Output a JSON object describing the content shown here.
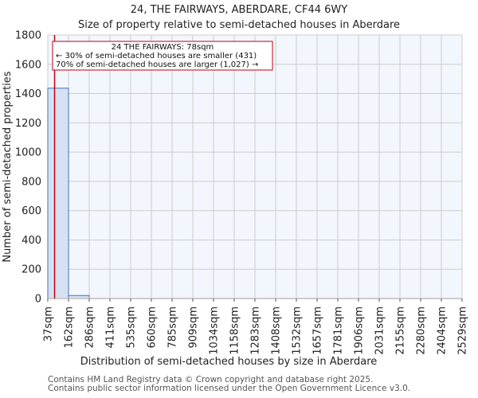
{
  "title": "24, THE FAIRWAYS, ABERDARE, CF44 6WY",
  "subtitle": "Size of property relative to semi-detached houses in Aberdare",
  "footer": {
    "line1": "Contains HM Land Registry data © Crown copyright and database right 2025.",
    "line2": "Contains public sector information licensed under the Open Government Licence v3.0."
  },
  "annotation": {
    "line1": "24 THE FAIRWAYS: 78sqm",
    "line2": "← 30% of semi-detached houses are smaller (431)",
    "line3": "70% of semi-detached houses are larger (1,027) →"
  },
  "colors": {
    "bar_fill": "#d6e1f3",
    "bar_edge": "#5a8ac8",
    "marker": "#c00010",
    "plot_bg": "#f2f6fd",
    "grid": "#cccccc"
  },
  "chart_data": {
    "type": "bar",
    "title": "24, THE FAIRWAYS, ABERDARE, CF44 6WY",
    "subtitle": "Size of property relative to semi-detached houses in Aberdare",
    "xlabel": "Distribution of semi-detached houses by size in Aberdare",
    "ylabel": "Number of semi-detached properties",
    "ylim": [
      0,
      1800
    ],
    "yticks": [
      0,
      200,
      400,
      600,
      800,
      1000,
      1200,
      1400,
      1600,
      1800
    ],
    "bin_edges_labels": [
      "37sqm",
      "162sqm",
      "286sqm",
      "411sqm",
      "535sqm",
      "660sqm",
      "785sqm",
      "909sqm",
      "1034sqm",
      "1158sqm",
      "1283sqm",
      "1408sqm",
      "1532sqm",
      "1657sqm",
      "1781sqm",
      "1906sqm",
      "2031sqm",
      "2155sqm",
      "2280sqm",
      "2404sqm",
      "2529sqm"
    ],
    "categories": [
      "37-162",
      "162-286",
      "286-411",
      "411-535",
      "535-660",
      "660-785",
      "785-909",
      "909-1034",
      "1034-1158",
      "1158-1283",
      "1283-1408",
      "1408-1532",
      "1532-1657",
      "1657-1781",
      "1781-1906",
      "1906-2031",
      "2031-2155",
      "2155-2280",
      "2280-2404",
      "2404-2529"
    ],
    "values": [
      1437,
      20,
      0,
      0,
      0,
      0,
      0,
      0,
      0,
      0,
      0,
      0,
      0,
      0,
      0,
      0,
      0,
      0,
      0,
      0
    ],
    "marker": {
      "value": 78,
      "label": "24 THE FAIRWAYS: 78sqm"
    },
    "grid": true,
    "legend": null
  }
}
